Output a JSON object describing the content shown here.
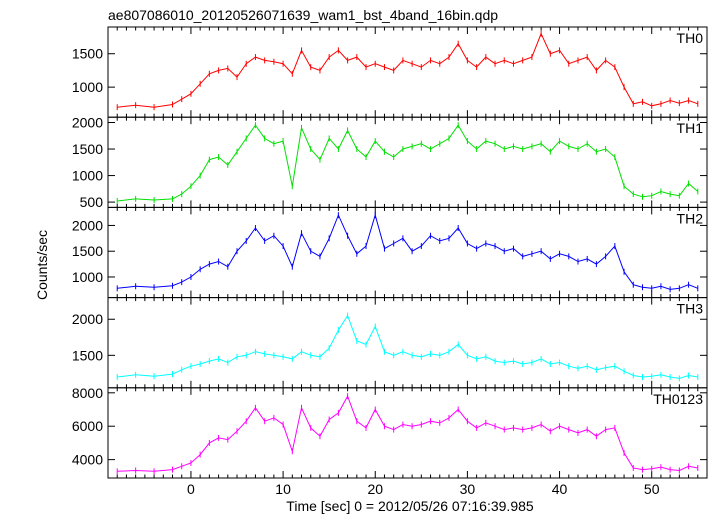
{
  "chart_data": [
    {
      "type": "line",
      "title": "ae807086010_20120526071639_wam1_bst_4band_16bin.qdp",
      "xlabel": "Time [sec] 0 = 2012/05/26 07:16:39.985",
      "ylabel": "Counts/sec",
      "xlim": [
        -9,
        56
      ],
      "xticks": [
        0,
        10,
        20,
        30,
        40,
        50
      ],
      "series": [
        {
          "name": "TH0",
          "color": "#ff0000",
          "ylim": [
            550,
            1900
          ],
          "yticks": [
            1000,
            1500
          ],
          "x": [
            -8,
            -6,
            -4,
            -2,
            -1,
            0,
            1,
            2,
            3,
            4,
            5,
            6,
            7,
            8,
            9,
            10,
            11,
            12,
            13,
            14,
            15,
            16,
            17,
            18,
            19,
            20,
            21,
            22,
            23,
            24,
            25,
            26,
            27,
            28,
            29,
            30,
            31,
            32,
            33,
            34,
            35,
            36,
            37,
            38,
            39,
            40,
            41,
            42,
            43,
            44,
            45,
            46,
            47,
            48,
            49,
            50,
            51,
            52,
            53,
            54,
            55
          ],
          "y": [
            700,
            730,
            700,
            740,
            820,
            900,
            1050,
            1200,
            1250,
            1280,
            1150,
            1350,
            1450,
            1400,
            1380,
            1350,
            1200,
            1550,
            1300,
            1250,
            1450,
            1550,
            1400,
            1450,
            1300,
            1350,
            1300,
            1250,
            1400,
            1350,
            1300,
            1400,
            1350,
            1450,
            1650,
            1400,
            1300,
            1450,
            1350,
            1400,
            1350,
            1400,
            1450,
            1800,
            1500,
            1550,
            1350,
            1400,
            1450,
            1250,
            1400,
            1300,
            1000,
            750,
            780,
            720,
            750,
            800,
            760,
            800,
            750
          ]
        },
        {
          "name": "TH1",
          "color": "#00e000",
          "ylim": [
            400,
            2100
          ],
          "yticks": [
            500,
            1000,
            1500,
            2000
          ],
          "x": [
            -8,
            -6,
            -4,
            -2,
            -1,
            0,
            1,
            2,
            3,
            4,
            5,
            6,
            7,
            8,
            9,
            10,
            11,
            12,
            13,
            14,
            15,
            16,
            17,
            18,
            19,
            20,
            21,
            22,
            23,
            24,
            25,
            26,
            27,
            28,
            29,
            30,
            31,
            32,
            33,
            34,
            35,
            36,
            37,
            38,
            39,
            40,
            41,
            42,
            43,
            44,
            45,
            46,
            47,
            48,
            49,
            50,
            51,
            52,
            53,
            54,
            55
          ],
          "y": [
            520,
            560,
            540,
            560,
            650,
            800,
            1000,
            1300,
            1350,
            1200,
            1450,
            1700,
            1950,
            1700,
            1600,
            1650,
            800,
            1900,
            1500,
            1300,
            1700,
            1500,
            1850,
            1500,
            1350,
            1650,
            1450,
            1350,
            1500,
            1550,
            1600,
            1500,
            1600,
            1700,
            1950,
            1650,
            1500,
            1650,
            1600,
            1500,
            1550,
            1500,
            1550,
            1600,
            1450,
            1650,
            1550,
            1500,
            1600,
            1450,
            1500,
            1350,
            800,
            650,
            600,
            620,
            700,
            650,
            620,
            850,
            700
          ]
        },
        {
          "name": "TH2",
          "color": "#0000ff",
          "ylim": [
            600,
            2350
          ],
          "yticks": [
            1000,
            1500,
            2000
          ],
          "x": [
            -8,
            -6,
            -4,
            -2,
            -1,
            0,
            1,
            2,
            3,
            4,
            5,
            6,
            7,
            8,
            9,
            10,
            11,
            12,
            13,
            14,
            15,
            16,
            17,
            18,
            19,
            20,
            21,
            22,
            23,
            24,
            25,
            26,
            27,
            28,
            29,
            30,
            31,
            32,
            33,
            34,
            35,
            36,
            37,
            38,
            39,
            40,
            41,
            42,
            43,
            44,
            45,
            46,
            47,
            48,
            49,
            50,
            51,
            52,
            53,
            54,
            55
          ],
          "y": [
            780,
            820,
            800,
            830,
            900,
            1000,
            1150,
            1250,
            1300,
            1200,
            1500,
            1700,
            1950,
            1700,
            1800,
            1600,
            1200,
            1850,
            1500,
            1400,
            1750,
            2200,
            1800,
            1450,
            1600,
            2200,
            1550,
            1650,
            1750,
            1500,
            1600,
            1800,
            1700,
            1750,
            1950,
            1650,
            1550,
            1650,
            1600,
            1500,
            1550,
            1400,
            1450,
            1500,
            1350,
            1450,
            1400,
            1300,
            1350,
            1250,
            1400,
            1600,
            1100,
            850,
            800,
            780,
            820,
            760,
            780,
            850,
            780
          ]
        },
        {
          "name": "TH3",
          "color": "#00ffff",
          "ylim": [
            1050,
            2300
          ],
          "yticks": [
            1500,
            2000
          ],
          "x": [
            -8,
            -6,
            -4,
            -2,
            -1,
            0,
            1,
            2,
            3,
            4,
            5,
            6,
            7,
            8,
            9,
            10,
            11,
            12,
            13,
            14,
            15,
            16,
            17,
            18,
            19,
            20,
            21,
            22,
            23,
            24,
            25,
            26,
            27,
            28,
            29,
            30,
            31,
            32,
            33,
            34,
            35,
            36,
            37,
            38,
            39,
            40,
            41,
            42,
            43,
            44,
            45,
            46,
            47,
            48,
            49,
            50,
            51,
            52,
            53,
            54,
            55
          ],
          "y": [
            1200,
            1230,
            1210,
            1240,
            1300,
            1350,
            1380,
            1420,
            1450,
            1400,
            1480,
            1500,
            1550,
            1520,
            1500,
            1480,
            1450,
            1550,
            1500,
            1480,
            1600,
            1850,
            2050,
            1700,
            1650,
            1900,
            1550,
            1500,
            1550,
            1500,
            1480,
            1520,
            1500,
            1550,
            1650,
            1500,
            1450,
            1480,
            1420,
            1400,
            1420,
            1380,
            1400,
            1450,
            1380,
            1400,
            1350,
            1320,
            1350,
            1300,
            1330,
            1350,
            1280,
            1220,
            1200,
            1210,
            1230,
            1200,
            1180,
            1220,
            1200
          ]
        },
        {
          "name": "TH0123",
          "color": "#ff00ff",
          "ylim": [
            2900,
            8300
          ],
          "yticks": [
            4000,
            6000,
            8000
          ],
          "x": [
            -8,
            -6,
            -4,
            -2,
            -1,
            0,
            1,
            2,
            3,
            4,
            5,
            6,
            7,
            8,
            9,
            10,
            11,
            12,
            13,
            14,
            15,
            16,
            17,
            18,
            19,
            20,
            21,
            22,
            23,
            24,
            25,
            26,
            27,
            28,
            29,
            30,
            31,
            32,
            33,
            34,
            35,
            36,
            37,
            38,
            39,
            40,
            41,
            42,
            43,
            44,
            45,
            46,
            47,
            48,
            49,
            50,
            51,
            52,
            53,
            54,
            55
          ],
          "y": [
            3300,
            3350,
            3300,
            3400,
            3600,
            3800,
            4300,
            5000,
            5300,
            5200,
            5700,
            6300,
            7100,
            6300,
            6500,
            6100,
            4500,
            7100,
            5900,
            5400,
            6400,
            6800,
            7800,
            6300,
            5900,
            7000,
            6000,
            5800,
            6100,
            6000,
            6100,
            6300,
            6200,
            6500,
            7000,
            6300,
            5900,
            6200,
            6000,
            5800,
            5900,
            5800,
            5900,
            6100,
            5700,
            6000,
            5800,
            5600,
            5800,
            5400,
            5800,
            5900,
            4400,
            3500,
            3400,
            3450,
            3550,
            3400,
            3350,
            3600,
            3500
          ]
        }
      ]
    }
  ]
}
